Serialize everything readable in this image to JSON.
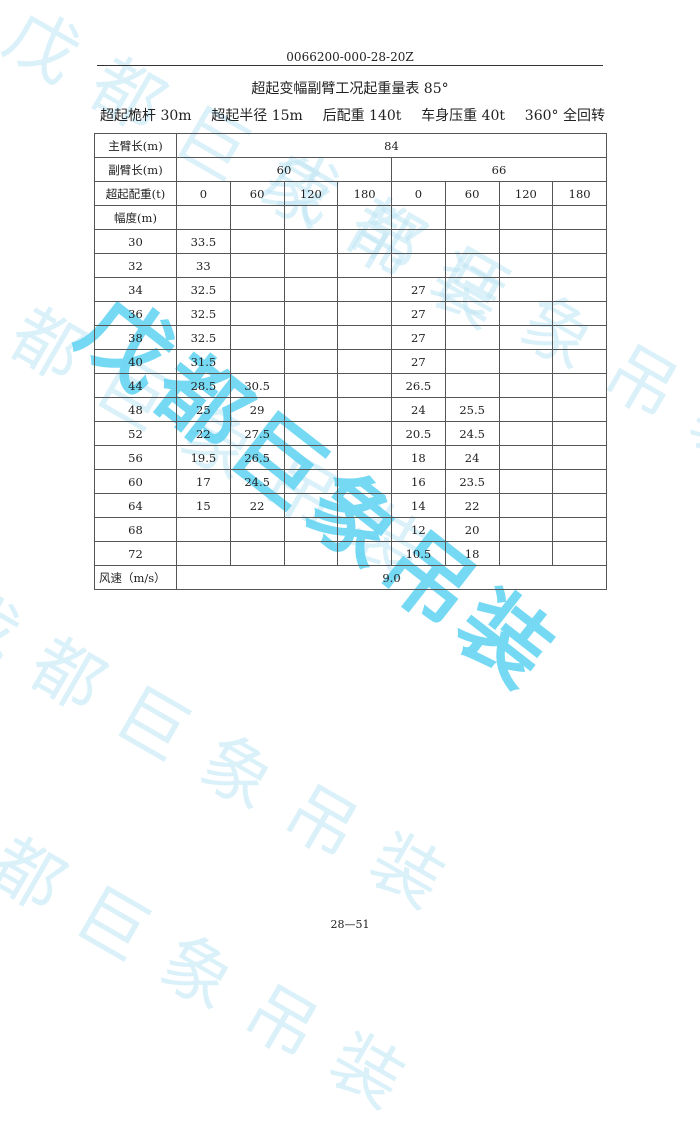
{
  "header": {
    "doc_code": "0066200-000-28-20Z"
  },
  "title": "超起变幅副臂工况起重量表 85°",
  "params": [
    "超起桅杆 30m",
    "超起半径 15m",
    "后配重 140t",
    "车身压重 40t",
    "360° 全回转"
  ],
  "table": {
    "main_boom_label": "主臂长(m)",
    "main_boom_value": "84",
    "jib_label": "副臂长(m)",
    "jib_values": [
      "60",
      "66"
    ],
    "counterweight_label": "超起配重(t)",
    "counterweights": [
      "0",
      "60",
      "120",
      "180",
      "0",
      "60",
      "120",
      "180"
    ],
    "radius_label": "幅度(m)",
    "rows": [
      {
        "r": "30",
        "v": [
          "33.5",
          "",
          "",
          "",
          "",
          "",
          "",
          ""
        ]
      },
      {
        "r": "32",
        "v": [
          "33",
          "",
          "",
          "",
          "",
          "",
          "",
          ""
        ]
      },
      {
        "r": "34",
        "v": [
          "32.5",
          "",
          "",
          "",
          "27",
          "",
          "",
          ""
        ]
      },
      {
        "r": "36",
        "v": [
          "32.5",
          "",
          "",
          "",
          "27",
          "",
          "",
          ""
        ]
      },
      {
        "r": "38",
        "v": [
          "32.5",
          "",
          "",
          "",
          "27",
          "",
          "",
          ""
        ]
      },
      {
        "r": "40",
        "v": [
          "31.5",
          "",
          "",
          "",
          "27",
          "",
          "",
          ""
        ]
      },
      {
        "r": "44",
        "v": [
          "28.5",
          "30.5",
          "",
          "",
          "26.5",
          "",
          "",
          ""
        ]
      },
      {
        "r": "48",
        "v": [
          "25",
          "29",
          "",
          "",
          "24",
          "25.5",
          "",
          ""
        ]
      },
      {
        "r": "52",
        "v": [
          "22",
          "27.5",
          "",
          "",
          "20.5",
          "24.5",
          "",
          ""
        ]
      },
      {
        "r": "56",
        "v": [
          "19.5",
          "26.5",
          "",
          "",
          "18",
          "24",
          "",
          ""
        ]
      },
      {
        "r": "60",
        "v": [
          "17",
          "24.5",
          "",
          "",
          "16",
          "23.5",
          "",
          ""
        ]
      },
      {
        "r": "64",
        "v": [
          "15",
          "22",
          "",
          "",
          "14",
          "22",
          "",
          ""
        ]
      },
      {
        "r": "68",
        "v": [
          "",
          "",
          "",
          "",
          "12",
          "20",
          "",
          ""
        ]
      },
      {
        "r": "72",
        "v": [
          "",
          "",
          "",
          "",
          "10.5",
          "18",
          "",
          ""
        ]
      }
    ],
    "wind_label": "风速（m/s）",
    "wind_value": "9.0"
  },
  "footer": {
    "page": "28—51"
  },
  "watermark": {
    "text": "戊都巨象吊装",
    "color": "#5fd3f3"
  }
}
